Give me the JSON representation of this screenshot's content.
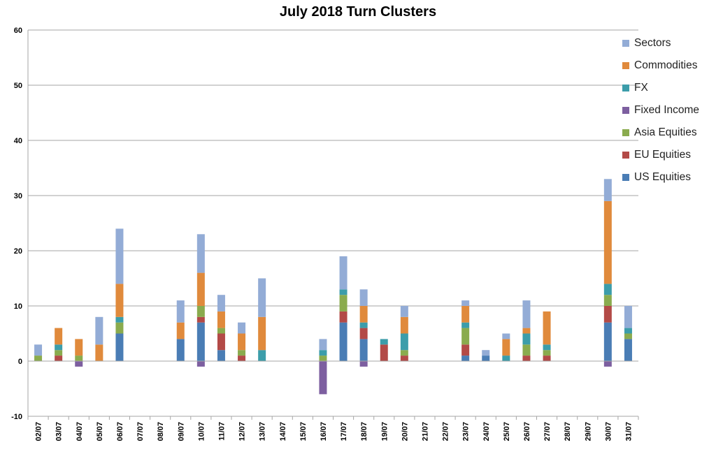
{
  "chart_data": {
    "type": "bar",
    "stacked": true,
    "title": "July 2018 Turn Clusters",
    "ylim": [
      -10,
      60
    ],
    "yticks": [
      "-10",
      "0",
      "10",
      "20",
      "30",
      "40",
      "50",
      "60"
    ],
    "grid": true,
    "legend_position": "right",
    "categories": [
      "02/07",
      "03/07",
      "04/07",
      "05/07",
      "06/07",
      "07/07",
      "08/07",
      "09/07",
      "10/07",
      "11/07",
      "12/07",
      "13/07",
      "14/07",
      "15/07",
      "16/07",
      "17/07",
      "18/07",
      "19/07",
      "20/07",
      "21/07",
      "22/07",
      "23/07",
      "24/07",
      "25/07",
      "26/07",
      "27/07",
      "28/07",
      "29/07",
      "30/07",
      "31/07"
    ],
    "series": [
      {
        "name": "US Equities",
        "color": "#4a7db5",
        "values": [
          0,
          0,
          0,
          0,
          5,
          0,
          0,
          4,
          7,
          2,
          0,
          0,
          0,
          0,
          0,
          7,
          4,
          0,
          0,
          0,
          0,
          1,
          1,
          0,
          0,
          0,
          0,
          0,
          7,
          4
        ]
      },
      {
        "name": "EU Equities",
        "color": "#b34a47",
        "values": [
          0,
          1,
          0,
          0,
          0,
          0,
          0,
          0,
          1,
          3,
          1,
          0,
          0,
          0,
          0,
          2,
          2,
          3,
          1,
          0,
          0,
          2,
          0,
          0,
          1,
          1,
          0,
          0,
          3,
          0
        ]
      },
      {
        "name": "Asia Equities",
        "color": "#8aab4e",
        "values": [
          1,
          1,
          1,
          0,
          2,
          0,
          0,
          0,
          2,
          1,
          1,
          0,
          0,
          0,
          1,
          3,
          0,
          0,
          1,
          0,
          0,
          3,
          0,
          0,
          2,
          1,
          0,
          0,
          2,
          1
        ]
      },
      {
        "name": "Fixed Income",
        "color": "#7d5fa0",
        "values": [
          0,
          0,
          -1,
          0,
          0,
          0,
          0,
          0,
          -1,
          0,
          0,
          0,
          0,
          0,
          -6,
          0,
          -1,
          0,
          0,
          0,
          0,
          0,
          0,
          0,
          0,
          0,
          0,
          0,
          -1,
          0
        ]
      },
      {
        "name": "FX",
        "color": "#3c9daa",
        "values": [
          0,
          1,
          0,
          0,
          1,
          0,
          0,
          0,
          0,
          0,
          0,
          2,
          0,
          0,
          1,
          1,
          1,
          1,
          3,
          0,
          0,
          1,
          0,
          1,
          2,
          1,
          0,
          0,
          2,
          1
        ]
      },
      {
        "name": "Commodities",
        "color": "#e08a3c",
        "values": [
          0,
          3,
          3,
          3,
          6,
          0,
          0,
          3,
          6,
          3,
          3,
          6,
          0,
          0,
          0,
          0,
          3,
          0,
          3,
          0,
          0,
          3,
          0,
          3,
          1,
          6,
          0,
          0,
          15,
          0
        ]
      },
      {
        "name": "Sectors",
        "color": "#93acd6",
        "values": [
          2,
          0,
          0,
          5,
          10,
          0,
          0,
          4,
          7,
          3,
          2,
          7,
          0,
          0,
          2,
          6,
          3,
          0,
          2,
          0,
          0,
          1,
          1,
          1,
          5,
          0,
          0,
          0,
          4,
          4
        ]
      }
    ]
  }
}
